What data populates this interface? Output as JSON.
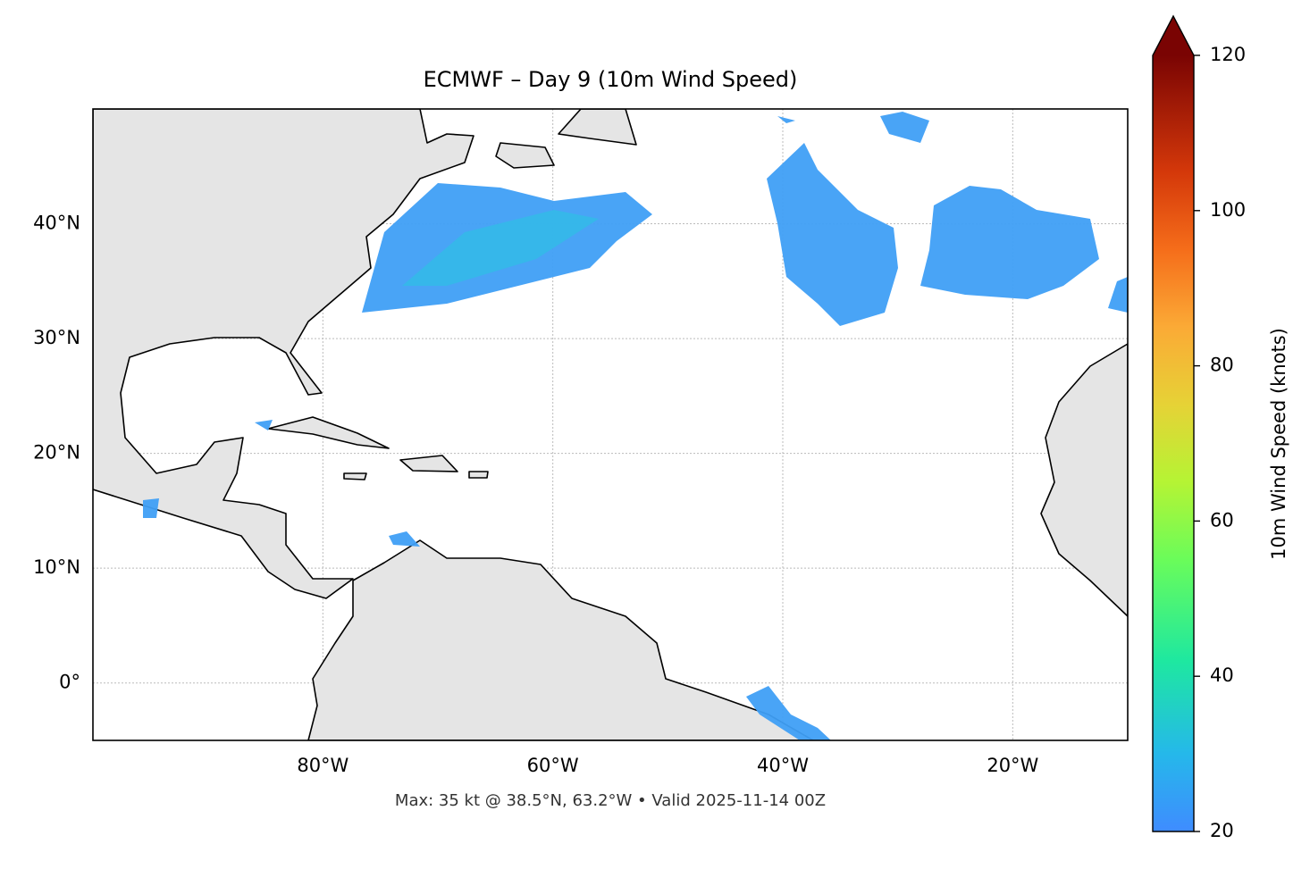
{
  "chart_data": {
    "type": "map",
    "title": "ECMWF – Day 9 (10m Wind Speed)",
    "caption": "Max: 35 kt @ 38.5°N, 63.2°W • Valid 2025-11-14 00Z",
    "xlim": [
      -100,
      -10
    ],
    "ylim": [
      -5,
      50
    ],
    "xticks": [
      {
        "value": -80,
        "label": "80°W"
      },
      {
        "value": -60,
        "label": "60°W"
      },
      {
        "value": -40,
        "label": "40°W"
      },
      {
        "value": -20,
        "label": "20°W"
      }
    ],
    "yticks": [
      {
        "value": 0,
        "label": "0°"
      },
      {
        "value": 10,
        "label": "10°N"
      },
      {
        "value": 20,
        "label": "20°N"
      },
      {
        "value": 30,
        "label": "30°N"
      },
      {
        "value": 40,
        "label": "40°N"
      }
    ],
    "grid": true,
    "colorbar": {
      "label": "10m Wind Speed (knots)",
      "lim": [
        20,
        120
      ],
      "ticks": [
        20,
        40,
        60,
        80,
        100,
        120
      ]
    }
  }
}
